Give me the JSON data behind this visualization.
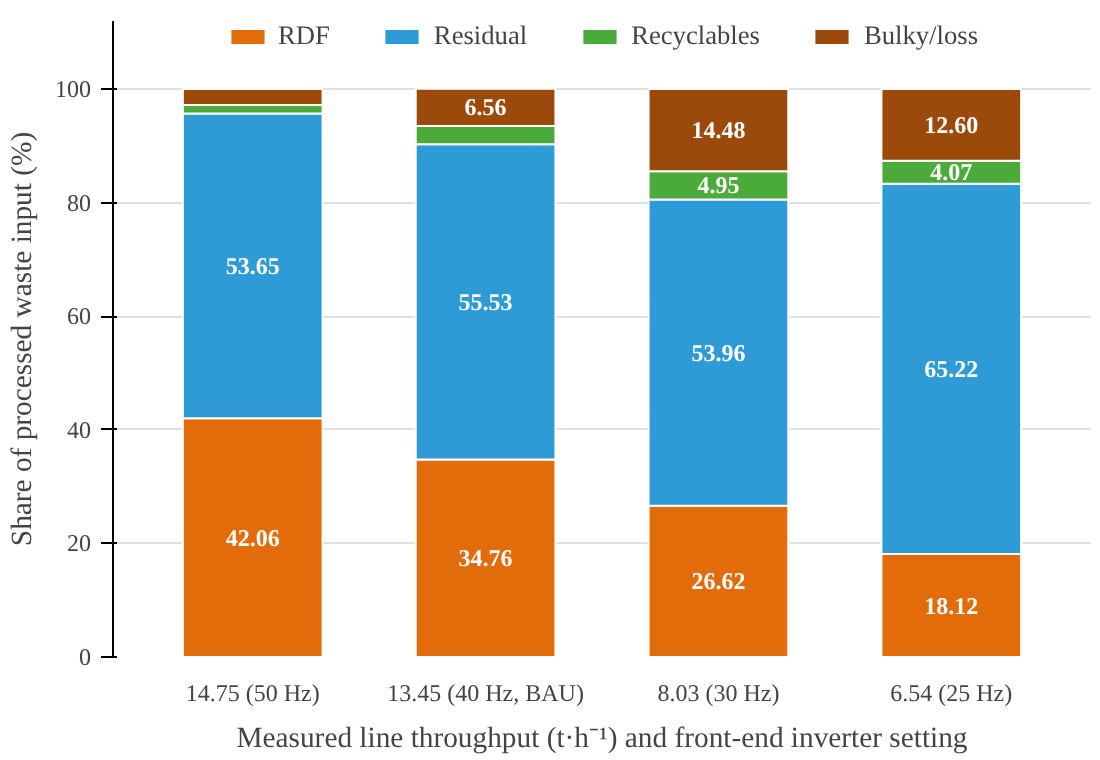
{
  "chart_data": {
    "type": "bar",
    "stacked": true,
    "xlabel": "Measured line throughput (t·h⁻¹) and front-end inverter setting",
    "ylabel": "Share of processed waste input (%)",
    "categories": [
      "14.75 (50 Hz)",
      "13.45 (40 Hz, BAU)",
      "8.03 (30 Hz)",
      "6.54 (25 Hz)"
    ],
    "series": [
      {
        "name": "RDF",
        "color": "#e36c0a",
        "values": [
          42.06,
          34.76,
          26.62,
          18.12
        ],
        "value_labels": [
          "42.06",
          "34.76",
          "26.62",
          "18.12"
        ]
      },
      {
        "name": "Residual",
        "color": "#2e9bd6",
        "values": [
          53.65,
          55.53,
          53.96,
          65.22
        ],
        "value_labels": [
          "53.65",
          "55.53",
          "53.96",
          "65.22"
        ]
      },
      {
        "name": "Recyclables",
        "color": "#4aab3a",
        "values": [
          1.5,
          3.2,
          4.95,
          4.07
        ],
        "value_labels": [
          null,
          null,
          "4.95",
          "4.07"
        ]
      },
      {
        "name": "Bulky/loss",
        "color": "#9c4a0c",
        "values": [
          2.8,
          6.56,
          14.48,
          12.6
        ],
        "value_labels": [
          null,
          "6.56",
          "14.48",
          "12.60"
        ]
      }
    ],
    "ylim": [
      0,
      112
    ],
    "yticks": [
      0,
      20,
      40,
      60,
      80,
      100
    ],
    "grid": "y",
    "legend": "top"
  }
}
